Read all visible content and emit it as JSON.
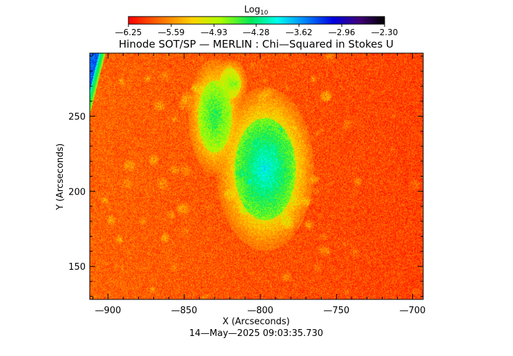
{
  "chart_data": {
    "type": "heatmap",
    "title": "Hinode SOT/SP — MERLIN : Chi—Squared in Stokes U",
    "xlabel": "X (Arcseconds)",
    "ylabel": "Y (Arcseconds)",
    "timestamp": "14—May—2025 09:03:35.730",
    "xlim": [
      -912,
      -693
    ],
    "ylim": [
      128,
      292
    ],
    "x_ticks": [
      {
        "value": -900,
        "label": "—900"
      },
      {
        "value": -850,
        "label": "—850"
      },
      {
        "value": -800,
        "label": "—800"
      },
      {
        "value": -750,
        "label": "—750"
      },
      {
        "value": -700,
        "label": "—700"
      }
    ],
    "y_ticks": [
      {
        "value": 150,
        "label": "150"
      },
      {
        "value": 200,
        "label": "200"
      },
      {
        "value": 250,
        "label": "250"
      }
    ],
    "colorbar": {
      "label_base": "Log",
      "label_sub": "10",
      "range": [
        -6.25,
        -2.3
      ],
      "tick_labels": [
        "—6.25",
        "—5.59",
        "—4.93",
        "—4.28",
        "—3.62",
        "—2.96",
        "—2.30"
      ],
      "tick_values": [
        -6.25,
        -5.59,
        -4.93,
        -4.28,
        -3.62,
        -2.96,
        -2.3
      ],
      "colormap": "rainbow"
    },
    "background_level": -5.8,
    "features": [
      {
        "kind": "spot",
        "x": -797,
        "y": 215,
        "rx": 20,
        "ry": 34,
        "peak": -3.9,
        "rim": -4.7
      },
      {
        "kind": "spot",
        "x": -830,
        "y": 250,
        "rx": 11,
        "ry": 24,
        "peak": -4.4,
        "rim": -4.9
      },
      {
        "kind": "spot",
        "x": -820,
        "y": 272,
        "rx": 7,
        "ry": 10,
        "peak": -4.8,
        "rim": -5.1
      },
      {
        "kind": "limb",
        "x": -912,
        "y": 292,
        "peak": -3.4
      }
    ]
  }
}
